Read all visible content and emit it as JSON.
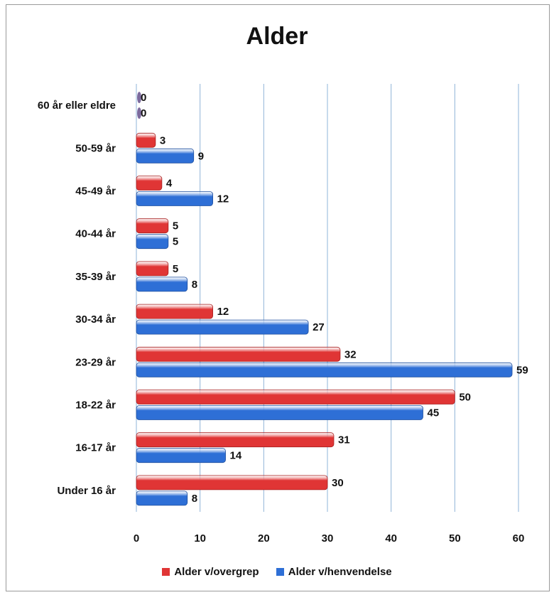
{
  "chart_data": {
    "type": "bar",
    "orientation": "horizontal",
    "title": "Alder",
    "categories": [
      "60 år eller eldre",
      "50-59 år",
      "45-49 år",
      "40-44 år",
      "35-39 år",
      "30-34 år",
      "23-29 år",
      "18-22 år",
      "16-17 år",
      "Under 16 år"
    ],
    "series": [
      {
        "name": "Alder v/overgrep",
        "color": "#e03535",
        "values": [
          0,
          3,
          4,
          5,
          5,
          12,
          32,
          50,
          31,
          30
        ]
      },
      {
        "name": "Alder v/henvendelse",
        "color": "#2e6fd6",
        "values": [
          0,
          9,
          12,
          5,
          8,
          27,
          59,
          45,
          14,
          8
        ]
      }
    ],
    "xlim": [
      0,
      60
    ],
    "xticks": [
      0,
      10,
      20,
      30,
      40,
      50,
      60
    ],
    "grid": true,
    "legend_position": "bottom"
  }
}
